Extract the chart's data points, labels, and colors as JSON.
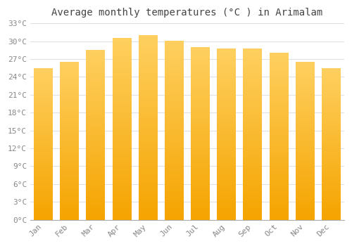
{
  "title": "Average monthly temperatures (°C ) in Arimalam",
  "months": [
    "Jan",
    "Feb",
    "Mar",
    "Apr",
    "May",
    "Jun",
    "Jul",
    "Aug",
    "Sep",
    "Oct",
    "Nov",
    "Dec"
  ],
  "values": [
    25.5,
    26.5,
    28.5,
    30.5,
    31.0,
    30.0,
    29.0,
    28.8,
    28.7,
    28.0,
    26.5,
    25.5
  ],
  "bar_color_bottom": "#F5A400",
  "bar_color_mid": "#FFD060",
  "ylim": [
    0,
    33
  ],
  "yticks": [
    0,
    3,
    6,
    9,
    12,
    15,
    18,
    21,
    24,
    27,
    30,
    33
  ],
  "ytick_labels": [
    "0°C",
    "3°C",
    "6°C",
    "9°C",
    "12°C",
    "15°C",
    "18°C",
    "21°C",
    "24°C",
    "27°C",
    "30°C",
    "33°C"
  ],
  "bg_color": "#ffffff",
  "grid_color": "#e0e0e0",
  "title_fontsize": 10,
  "tick_fontsize": 8,
  "tick_color": "#888888",
  "font_family": "monospace",
  "bar_width": 0.72,
  "figsize": [
    5.0,
    3.5
  ],
  "dpi": 100
}
